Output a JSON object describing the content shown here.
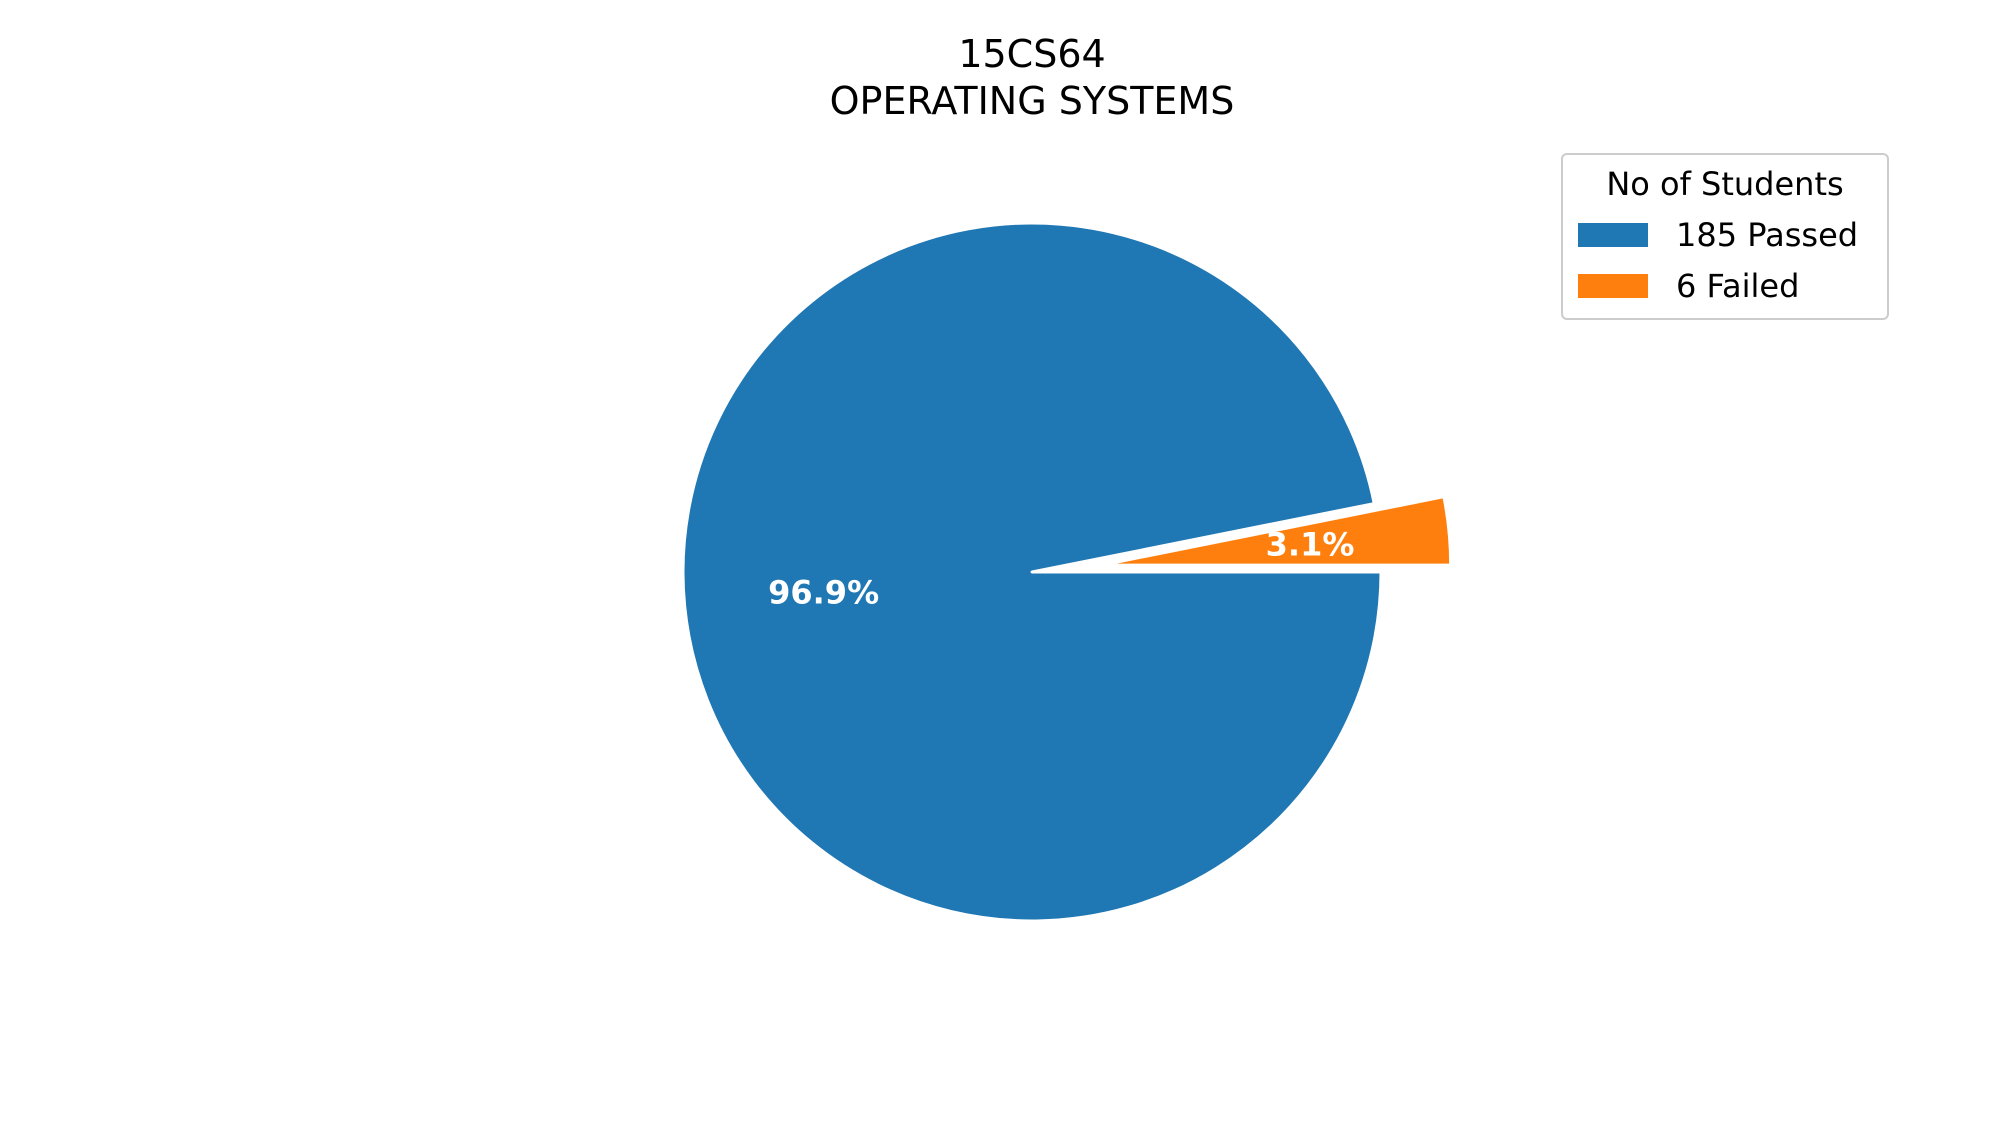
{
  "chart_data": {
    "type": "pie",
    "title": "15CS64\nOPERATING SYSTEMS",
    "title_lines": [
      "15CS64",
      "OPERATING SYSTEMS"
    ],
    "slices": [
      {
        "label": "185 Passed",
        "value": 185,
        "percent_label": "96.9%",
        "color": "#1f77b4",
        "exploded": false
      },
      {
        "label": "6 Failed",
        "value": 6,
        "percent_label": "3.1%",
        "color": "#ff7f0e",
        "exploded": true
      }
    ],
    "legend": {
      "title": "No of Students",
      "placement": "top-right"
    },
    "start_angle_deg": 0,
    "direction": "clockwise"
  }
}
